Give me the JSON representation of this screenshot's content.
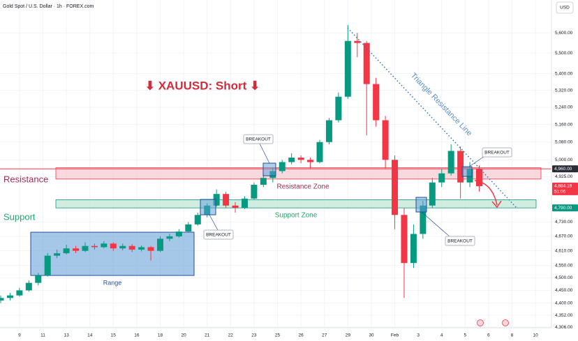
{
  "chart_data": {
    "type": "candlestick",
    "title": "Gold Spot / U.S. Dollar · 1h · FOREX.com",
    "currency": "USD",
    "headline": "⬇ XAUUSD: Short ⬇",
    "log_scale": true,
    "grid": true,
    "up_color": "#089981",
    "down_color": "#f23645",
    "xlim": [
      -0.83,
      22.68
    ],
    "ylim": [
      4304,
      5767
    ],
    "xticks": [
      {
        "value": 0,
        "label": "9"
      },
      {
        "value": 1,
        "label": "11"
      },
      {
        "value": 2,
        "label": "13"
      },
      {
        "value": 3,
        "label": "14"
      },
      {
        "value": 4,
        "label": "15"
      },
      {
        "value": 5,
        "label": "16"
      },
      {
        "value": 6,
        "label": "18"
      },
      {
        "value": 7,
        "label": "20"
      },
      {
        "value": 8,
        "label": "21"
      },
      {
        "value": 9,
        "label": "22"
      },
      {
        "value": 10,
        "label": "23"
      },
      {
        "value": 11,
        "label": "25"
      },
      {
        "value": 12,
        "label": "26"
      },
      {
        "value": 13,
        "label": "27"
      },
      {
        "value": 14,
        "label": "29"
      },
      {
        "value": 15,
        "label": "30"
      },
      {
        "value": 16,
        "label": "Feb"
      },
      {
        "value": 17,
        "label": "3"
      },
      {
        "value": 18,
        "label": "4"
      },
      {
        "value": 19,
        "label": "5"
      },
      {
        "value": 20,
        "label": "6"
      },
      {
        "value": 21,
        "label": "8"
      },
      {
        "value": 22,
        "label": "10"
      }
    ],
    "yticks": [
      {
        "value": 5600,
        "label": "5,600.00"
      },
      {
        "value": 5500,
        "label": "5,500.00"
      },
      {
        "value": 5400,
        "label": "5,400.00"
      },
      {
        "value": 5320,
        "label": "5,320.00"
      },
      {
        "value": 5240,
        "label": "5,240.00"
      },
      {
        "value": 5160,
        "label": "5,160.00"
      },
      {
        "value": 5080,
        "label": "5,080.00"
      },
      {
        "value": 5000,
        "label": "5,000.00"
      },
      {
        "value": 4925,
        "label": "4,925.00"
      },
      {
        "value": 4730,
        "label": "4,730.00"
      },
      {
        "value": 4670,
        "label": "4,670.00"
      },
      {
        "value": 4610,
        "label": "4,610.00"
      },
      {
        "value": 4550,
        "label": "4,550.00"
      },
      {
        "value": 4500,
        "label": "4,500.00"
      },
      {
        "value": 4450,
        "label": "4,450.00"
      },
      {
        "value": 4400,
        "label": "4,400.00"
      },
      {
        "value": 4352,
        "label": "4,352.00"
      },
      {
        "value": 4306,
        "label": "4,306.00"
      }
    ],
    "x": [
      -0.8,
      -0.4,
      0,
      0.4,
      0.8,
      1.2,
      1.6,
      2,
      2.4,
      2.8,
      3.2,
      3.6,
      4,
      4.4,
      4.8,
      5.2,
      5.6,
      6,
      6.4,
      6.8,
      7.2,
      7.6,
      8,
      8.4,
      8.8,
      9.2,
      9.6,
      10,
      10.4,
      10.8,
      11.2,
      11.6,
      12,
      12.4,
      12.8,
      13.2,
      13.6,
      14,
      14.4,
      14.8,
      15.2,
      15.6,
      16,
      16.4,
      16.8,
      17.2,
      17.6,
      18,
      18.4,
      18.8,
      19.2,
      19.6
    ],
    "open": [
      4410,
      4420,
      4430,
      4450,
      4480,
      4510,
      4590,
      4600,
      4620,
      4610,
      4630,
      4625,
      4640,
      4620,
      4630,
      4615,
      4625,
      4610,
      4660,
      4670,
      4690,
      4720,
      4760,
      4800,
      4850,
      4800,
      4790,
      4830,
      4890,
      4920,
      4950,
      4990,
      5010,
      5000,
      4990,
      5080,
      5180,
      5290,
      5560,
      5550,
      5350,
      5180,
      5000,
      4760,
      4560,
      4680,
      4800,
      4900,
      4940,
      5040,
      4900,
      4960
    ],
    "high": [
      4430,
      4440,
      4460,
      4490,
      4520,
      4600,
      4615,
      4635,
      4630,
      4645,
      4640,
      4650,
      4645,
      4640,
      4638,
      4632,
      4630,
      4670,
      4680,
      4700,
      4730,
      4770,
      4810,
      4870,
      4860,
      4815,
      4840,
      4900,
      4935,
      4965,
      5000,
      5030,
      5020,
      5010,
      5090,
      5190,
      5310,
      5640,
      5600,
      5560,
      5380,
      5200,
      5020,
      4790,
      4720,
      4820,
      4920,
      4960,
      5070,
      5060,
      4990,
      4975
    ],
    "low": [
      4400,
      4410,
      4425,
      4445,
      4470,
      4505,
      4580,
      4595,
      4600,
      4605,
      4615,
      4620,
      4610,
      4612,
      4605,
      4608,
      4570,
      4605,
      4650,
      4665,
      4685,
      4715,
      4750,
      4795,
      4790,
      4770,
      4785,
      4825,
      4880,
      4900,
      4940,
      4980,
      4985,
      4960,
      4985,
      5070,
      5170,
      5280,
      5480,
      5110,
      5150,
      4960,
      4700,
      4420,
      4540,
      4660,
      4790,
      4880,
      4930,
      4830,
      4880,
      4860
    ],
    "close": [
      4420,
      4430,
      4450,
      4480,
      4510,
      4590,
      4600,
      4620,
      4610,
      4630,
      4625,
      4640,
      4620,
      4630,
      4615,
      4625,
      4610,
      4660,
      4670,
      4690,
      4720,
      4760,
      4800,
      4850,
      4800,
      4790,
      4830,
      4890,
      4920,
      4950,
      4990,
      5010,
      5000,
      4990,
      5080,
      5180,
      5290,
      5560,
      5550,
      5350,
      5180,
      5000,
      4760,
      4560,
      4680,
      4800,
      4900,
      4940,
      5040,
      4900,
      4960,
      4884
    ],
    "resistance_label": "Resistance",
    "support_label": "Support",
    "resistance_zone": {
      "label": "Resistance Zone",
      "range": [
        4915,
        4965
      ],
      "color": "#f23645"
    },
    "support_zone": {
      "label": "Support Zone",
      "range": [
        4790,
        4825
      ],
      "color": "#089981"
    },
    "range_label": "Range",
    "triangle_label": "Triangle Resistance Line",
    "breakout_labels": [
      "BREAKOUT",
      "BREAKOUT",
      "BREAKOUT",
      "BREAKOUT"
    ],
    "price_labels": [
      {
        "value": 4960,
        "label": "4,960.00",
        "color": "#2a2e39"
      },
      {
        "value": 4884.19,
        "label": "4,884.19",
        "sub": "51:06",
        "color": "#f23645"
      },
      {
        "value": 4790,
        "label": "4,790.00",
        "color": "#089981"
      }
    ]
  }
}
